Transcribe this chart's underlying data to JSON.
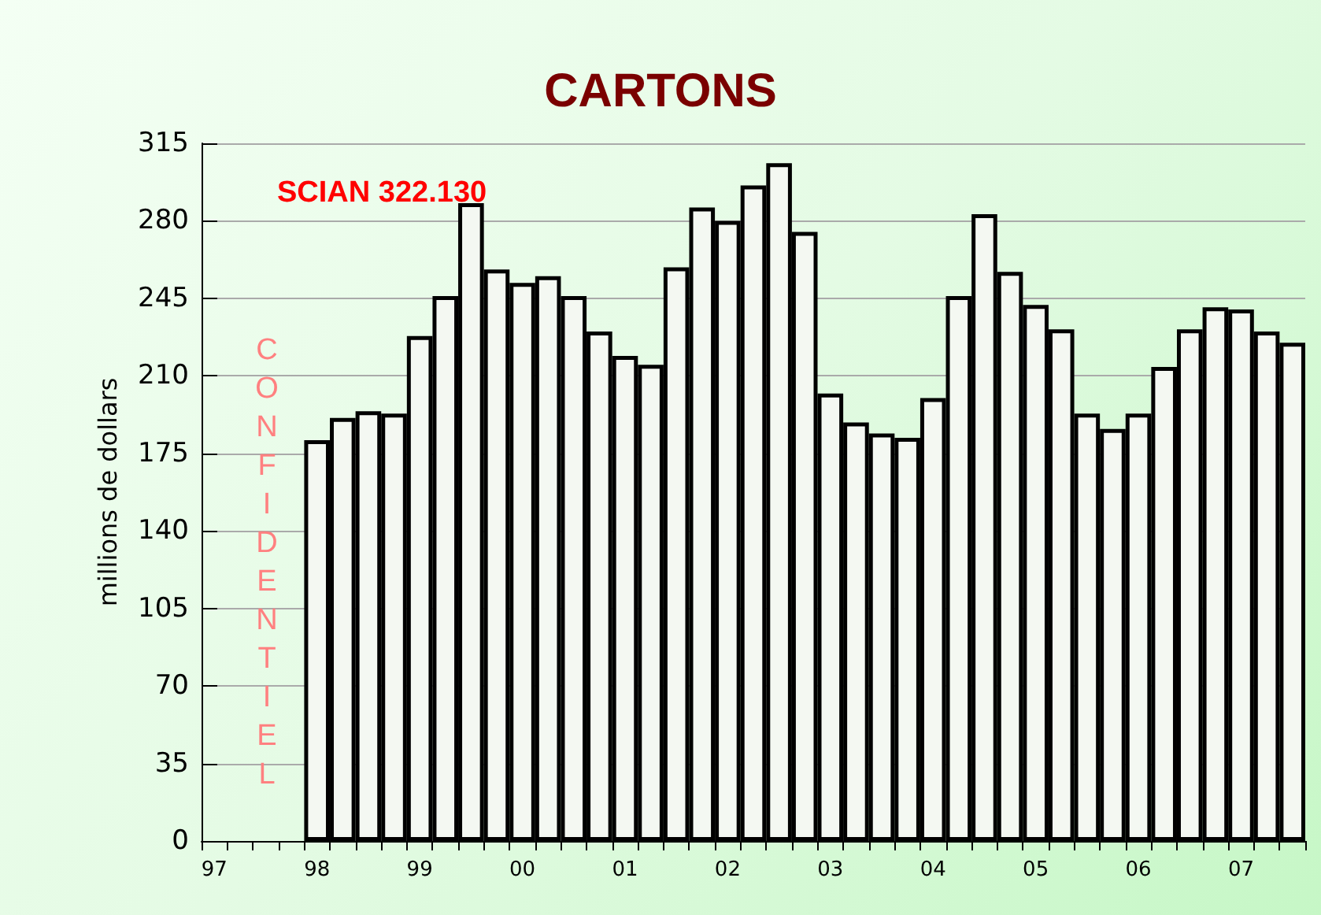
{
  "chart_data": {
    "type": "bar",
    "title": "CARTONS",
    "ylabel": "millions de dollars",
    "annotations": [
      "SCIAN 322.130",
      "CONFIDENTIEL"
    ],
    "categories": [
      "97",
      null,
      null,
      null,
      "98",
      null,
      null,
      null,
      "99",
      null,
      null,
      null,
      "00",
      null,
      null,
      null,
      "01",
      null,
      null,
      null,
      "02",
      null,
      null,
      null,
      "03",
      null,
      null,
      null,
      "04",
      null,
      null,
      null,
      "05",
      null,
      null,
      null,
      "06",
      null,
      null,
      null,
      "07",
      null,
      null
    ],
    "values": [
      null,
      null,
      null,
      null,
      181,
      191,
      194,
      193,
      228,
      246,
      288,
      258,
      252,
      255,
      246,
      230,
      219,
      215,
      259,
      286,
      280,
      296,
      306,
      275,
      202,
      189,
      184,
      182,
      200,
      246,
      283,
      257,
      242,
      231,
      193,
      186,
      193,
      214,
      231,
      241,
      240,
      230,
      225
    ],
    "color": "#f4f8f2",
    "ylim": [
      0,
      315
    ],
    "yticks": [
      0,
      35,
      70,
      105,
      140,
      175,
      210,
      245,
      280,
      315
    ],
    "grid": "y"
  }
}
